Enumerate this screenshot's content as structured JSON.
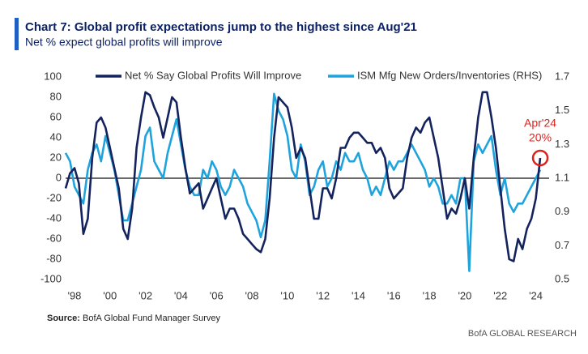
{
  "chart_data": {
    "type": "line",
    "title": "Chart 7: Global profit expectations jump to the highest since Aug'21",
    "subtitle": "Net % expect global profits will improve",
    "source": {
      "label": "Source:",
      "text": "BofA Global Fund Manager Survey"
    },
    "brand": "BofA GLOBAL RESEARCH",
    "annotation": [
      "Apr'24",
      "20%"
    ],
    "legend": "top",
    "zero_line": true,
    "x": [
      1997.5,
      1997.75,
      1998,
      1998.25,
      1998.5,
      1998.75,
      1999,
      1999.25,
      1999.5,
      1999.75,
      2000,
      2000.25,
      2000.5,
      2000.75,
      2001,
      2001.25,
      2001.5,
      2001.75,
      2002,
      2002.25,
      2002.5,
      2002.75,
      2003,
      2003.25,
      2003.5,
      2003.75,
      2004,
      2004.25,
      2004.5,
      2004.75,
      2005,
      2005.25,
      2005.5,
      2005.75,
      2006,
      2006.25,
      2006.5,
      2006.75,
      2007,
      2007.25,
      2007.5,
      2007.75,
      2008,
      2008.25,
      2008.5,
      2008.75,
      2009,
      2009.25,
      2009.5,
      2009.75,
      2010,
      2010.25,
      2010.5,
      2010.75,
      2011,
      2011.25,
      2011.5,
      2011.75,
      2012,
      2012.25,
      2012.5,
      2012.75,
      2013,
      2013.25,
      2013.5,
      2013.75,
      2014,
      2014.25,
      2014.5,
      2014.75,
      2015,
      2015.25,
      2015.5,
      2015.75,
      2016,
      2016.25,
      2016.5,
      2016.75,
      2017,
      2017.25,
      2017.5,
      2017.75,
      2018,
      2018.25,
      2018.5,
      2018.75,
      2019,
      2019.25,
      2019.5,
      2019.75,
      2020,
      2020.25,
      2020.5,
      2020.75,
      2021,
      2021.25,
      2021.5,
      2021.75,
      2022,
      2022.25,
      2022.5,
      2022.75,
      2023,
      2023.25,
      2023.5,
      2023.75,
      2024,
      2024.25
    ],
    "series": [
      {
        "name": "Net % Say Global Profits Will Improve",
        "color": "#14235e",
        "values": [
          -10,
          5,
          10,
          -5,
          -55,
          -40,
          20,
          55,
          60,
          50,
          30,
          10,
          -10,
          -50,
          -60,
          -30,
          30,
          60,
          85,
          82,
          70,
          60,
          40,
          60,
          80,
          75,
          40,
          10,
          -15,
          -10,
          -5,
          -30,
          -20,
          -10,
          0,
          -20,
          -40,
          -30,
          -30,
          -40,
          -55,
          -60,
          -65,
          -70,
          -73,
          -60,
          -20,
          40,
          80,
          75,
          70,
          50,
          20,
          30,
          20,
          -10,
          -40,
          -40,
          -10,
          -10,
          -20,
          0,
          30,
          30,
          40,
          45,
          45,
          40,
          35,
          35,
          25,
          30,
          20,
          -10,
          -20,
          -15,
          -10,
          20,
          40,
          50,
          45,
          55,
          60,
          40,
          20,
          -10,
          -40,
          -30,
          -35,
          -20,
          0,
          -30,
          20,
          60,
          85,
          85,
          60,
          30,
          -10,
          -50,
          -80,
          -82,
          -60,
          -70,
          -50,
          -40,
          -20,
          20
        ]
      },
      {
        "name": "ISM Mfg New Orders/Inventories (RHS)",
        "color": "#1fa3dd",
        "axis": "y2",
        "values": [
          1.25,
          1.2,
          1.05,
          1.0,
          0.95,
          1.15,
          1.25,
          1.3,
          1.2,
          1.35,
          1.25,
          1.15,
          1.0,
          0.85,
          0.85,
          0.95,
          1.05,
          1.15,
          1.35,
          1.4,
          1.2,
          1.15,
          1.1,
          1.25,
          1.35,
          1.45,
          1.3,
          1.15,
          1.05,
          1.0,
          1.0,
          1.15,
          1.1,
          1.2,
          1.15,
          1.05,
          1.0,
          1.05,
          1.15,
          1.1,
          1.05,
          0.95,
          0.9,
          0.85,
          0.75,
          0.85,
          1.2,
          1.6,
          1.5,
          1.45,
          1.35,
          1.15,
          1.1,
          1.3,
          1.2,
          1.0,
          1.05,
          1.15,
          1.2,
          1.05,
          1.1,
          1.2,
          1.15,
          1.25,
          1.2,
          1.2,
          1.25,
          1.15,
          1.1,
          1.0,
          1.05,
          1.0,
          1.1,
          1.2,
          1.15,
          1.2,
          1.2,
          1.25,
          1.3,
          1.25,
          1.2,
          1.15,
          1.05,
          1.1,
          1.05,
          0.95,
          0.95,
          1.0,
          0.95,
          1.1,
          1.1,
          0.55,
          1.2,
          1.3,
          1.25,
          1.3,
          1.35,
          1.15,
          1.0,
          1.1,
          0.95,
          0.9,
          0.95,
          0.95,
          1.0,
          1.05,
          1.1,
          1.15
        ]
      }
    ],
    "xlim": [
      1997.5,
      2024.75
    ],
    "xticks": [
      {
        "value": 1998,
        "label": "'98"
      },
      {
        "value": 2000,
        "label": "'00"
      },
      {
        "value": 2002,
        "label": "'02"
      },
      {
        "value": 2004,
        "label": "'04"
      },
      {
        "value": 2006,
        "label": "'06"
      },
      {
        "value": 2008,
        "label": "'08"
      },
      {
        "value": 2010,
        "label": "'10"
      },
      {
        "value": 2012,
        "label": "'12"
      },
      {
        "value": 2014,
        "label": "'14"
      },
      {
        "value": 2016,
        "label": "'16"
      },
      {
        "value": 2018,
        "label": "'18"
      },
      {
        "value": 2020,
        "label": "'20"
      },
      {
        "value": 2022,
        "label": "'22"
      },
      {
        "value": 2024,
        "label": "'24"
      }
    ],
    "ylim": [
      -100,
      100
    ],
    "yticks": [
      100,
      80,
      60,
      40,
      20,
      0,
      -20,
      -40,
      -60,
      -80,
      -100
    ],
    "y2lim": [
      0.5,
      1.7
    ],
    "y2ticks": [
      1.7,
      1.5,
      1.3,
      1.1,
      0.9,
      0.7,
      0.5
    ]
  }
}
